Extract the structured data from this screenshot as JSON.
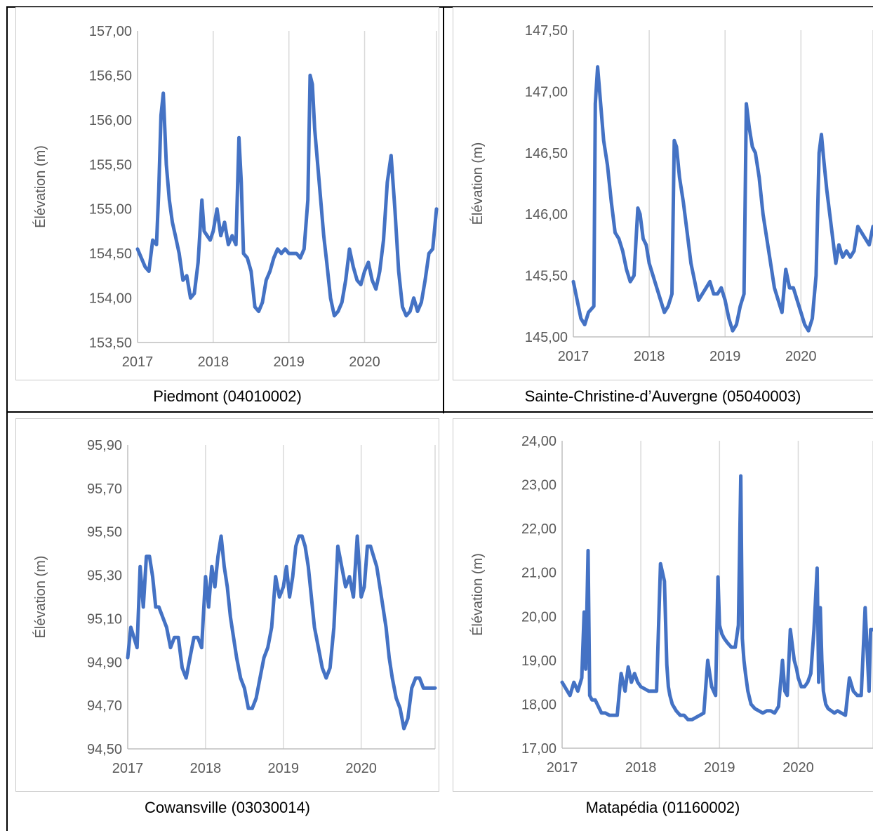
{
  "colors": {
    "line": "#4472C4",
    "grid": "#d9d9d9",
    "axis": "#bfbfbf",
    "text": "#595959"
  },
  "chart_data": [
    {
      "type": "line",
      "caption": "Piedmont (04010002)",
      "ylabel": "Élévation (m)",
      "ylim": [
        153.5,
        157.0
      ],
      "yticks": [
        "153,50",
        "154,00",
        "154,50",
        "155,00",
        "155,50",
        "156,00",
        "156,50",
        "157,00"
      ],
      "xlim": [
        2017,
        2020.95
      ],
      "xticks": [
        "2017",
        "2018",
        "2019",
        "2020"
      ],
      "grid": "vertical",
      "series": [
        {
          "x": [
            2017.0,
            2017.05,
            2017.1,
            2017.15,
            2017.2,
            2017.25,
            2017.28,
            2017.31,
            2017.34,
            2017.38,
            2017.42,
            2017.46,
            2017.5,
            2017.55,
            2017.6,
            2017.65,
            2017.7,
            2017.75,
            2017.8,
            2017.85,
            2017.88,
            2017.92,
            2017.96,
            2018.0,
            2018.05,
            2018.1,
            2018.15,
            2018.2,
            2018.25,
            2018.3,
            2018.34,
            2018.37,
            2018.4,
            2018.45,
            2018.5,
            2018.55,
            2018.6,
            2018.65,
            2018.7,
            2018.75,
            2018.8,
            2018.85,
            2018.9,
            2018.95,
            2019.0,
            2019.05,
            2019.1,
            2019.15,
            2019.2,
            2019.25,
            2019.28,
            2019.31,
            2019.34,
            2019.38,
            2019.42,
            2019.46,
            2019.5,
            2019.55,
            2019.6,
            2019.65,
            2019.7,
            2019.75,
            2019.8,
            2019.85,
            2019.9,
            2019.95,
            2020.0,
            2020.05,
            2020.1,
            2020.15,
            2020.2,
            2020.25,
            2020.3,
            2020.35,
            2020.4,
            2020.45,
            2020.5,
            2020.55,
            2020.6,
            2020.65,
            2020.7,
            2020.75,
            2020.8,
            2020.85,
            2020.9,
            2020.95
          ],
          "y": [
            154.55,
            154.45,
            154.35,
            154.3,
            154.65,
            154.6,
            155.2,
            156.05,
            156.3,
            155.5,
            155.1,
            154.85,
            154.7,
            154.5,
            154.2,
            154.25,
            154.0,
            154.05,
            154.4,
            155.1,
            154.75,
            154.7,
            154.65,
            154.75,
            155.0,
            154.7,
            154.85,
            154.6,
            154.7,
            154.6,
            155.8,
            155.3,
            154.5,
            154.45,
            154.3,
            153.9,
            153.85,
            153.95,
            154.2,
            154.3,
            154.45,
            154.55,
            154.5,
            154.55,
            154.5,
            154.5,
            154.5,
            154.45,
            154.55,
            155.1,
            156.5,
            156.4,
            155.9,
            155.5,
            155.1,
            154.7,
            154.4,
            154.0,
            153.8,
            153.85,
            153.95,
            154.2,
            154.55,
            154.35,
            154.2,
            154.15,
            154.3,
            154.4,
            154.2,
            154.1,
            154.3,
            154.65,
            155.3,
            155.6,
            155.0,
            154.3,
            153.9,
            153.8,
            153.85,
            154.0,
            153.85,
            153.95,
            154.2,
            154.5,
            154.55,
            155.0
          ]
        }
      ]
    },
    {
      "type": "line",
      "caption": "Sainte-Christine-d’Auvergne (05040003)",
      "ylabel": "Élévation (m)",
      "ylim": [
        145.0,
        147.5
      ],
      "yticks": [
        "145,00",
        "145,50",
        "146,00",
        "146,50",
        "147,00",
        "147,50"
      ],
      "xlim": [
        2017,
        2020.95
      ],
      "xticks": [
        "2017",
        "2018",
        "2019",
        "2020"
      ],
      "grid": "vertical",
      "series": [
        {
          "x": [
            2017.0,
            2017.05,
            2017.1,
            2017.15,
            2017.2,
            2017.27,
            2017.29,
            2017.32,
            2017.36,
            2017.4,
            2017.45,
            2017.5,
            2017.55,
            2017.6,
            2017.65,
            2017.7,
            2017.75,
            2017.8,
            2017.85,
            2017.88,
            2017.92,
            2017.96,
            2018.0,
            2018.05,
            2018.1,
            2018.15,
            2018.2,
            2018.25,
            2018.3,
            2018.33,
            2018.36,
            2018.4,
            2018.45,
            2018.5,
            2018.55,
            2018.6,
            2018.65,
            2018.7,
            2018.75,
            2018.8,
            2018.85,
            2018.9,
            2018.95,
            2019.0,
            2019.05,
            2019.1,
            2019.15,
            2019.2,
            2019.25,
            2019.28,
            2019.32,
            2019.36,
            2019.4,
            2019.45,
            2019.5,
            2019.55,
            2019.6,
            2019.65,
            2019.7,
            2019.75,
            2019.8,
            2019.85,
            2019.9,
            2019.95,
            2020.0,
            2020.05,
            2020.1,
            2020.15,
            2020.2,
            2020.24,
            2020.27,
            2020.3,
            2020.34,
            2020.38,
            2020.42,
            2020.46,
            2020.5,
            2020.55,
            2020.6,
            2020.65,
            2020.7,
            2020.75,
            2020.8,
            2020.85,
            2020.9,
            2020.95
          ],
          "y": [
            145.45,
            145.3,
            145.15,
            145.1,
            145.2,
            145.25,
            146.9,
            147.2,
            146.9,
            146.6,
            146.4,
            146.1,
            145.85,
            145.8,
            145.7,
            145.55,
            145.45,
            145.5,
            146.05,
            146.0,
            145.8,
            145.75,
            145.6,
            145.5,
            145.4,
            145.3,
            145.2,
            145.25,
            145.35,
            146.6,
            146.55,
            146.3,
            146.1,
            145.85,
            145.6,
            145.45,
            145.3,
            145.35,
            145.4,
            145.45,
            145.35,
            145.35,
            145.4,
            145.3,
            145.15,
            145.05,
            145.1,
            145.25,
            145.35,
            146.9,
            146.7,
            146.55,
            146.5,
            146.3,
            146.0,
            145.8,
            145.6,
            145.4,
            145.3,
            145.2,
            145.55,
            145.4,
            145.4,
            145.3,
            145.2,
            145.1,
            145.05,
            145.15,
            145.5,
            146.5,
            146.65,
            146.45,
            146.2,
            146.0,
            145.8,
            145.6,
            145.75,
            145.65,
            145.7,
            145.65,
            145.7,
            145.9,
            145.85,
            145.8,
            145.75,
            145.9
          ]
        }
      ]
    },
    {
      "type": "line",
      "caption": "Cowansville (03030014)",
      "ylabel": "Élévation (m)",
      "ylim": [
        94.5,
        96.0
      ],
      "yticks": [
        "94,50",
        "94,70",
        "94,90",
        "95,10",
        "95,30",
        "95,50",
        "95,70",
        "95,90"
      ],
      "xlim": [
        2017,
        2020.95
      ],
      "xticks": [
        "2017",
        "2018",
        "2019",
        "2020"
      ],
      "grid": "vertical",
      "series": [
        {
          "x": [
            2017.0,
            2017.04,
            2017.08,
            2017.12,
            2017.16,
            2017.2,
            2017.24,
            2017.28,
            2017.32,
            2017.36,
            2017.4,
            2017.45,
            2017.5,
            2017.55,
            2017.6,
            2017.65,
            2017.7,
            2017.75,
            2017.8,
            2017.85,
            2017.9,
            2017.95,
            2018.0,
            2018.04,
            2018.08,
            2018.12,
            2018.16,
            2018.2,
            2018.24,
            2018.28,
            2018.32,
            2018.36,
            2018.4,
            2018.45,
            2018.5,
            2018.55,
            2018.6,
            2018.65,
            2018.7,
            2018.75,
            2018.8,
            2018.85,
            2018.9,
            2018.95,
            2019.0,
            2019.04,
            2019.08,
            2019.12,
            2019.16,
            2019.2,
            2019.24,
            2019.28,
            2019.32,
            2019.36,
            2019.4,
            2019.45,
            2019.5,
            2019.55,
            2019.6,
            2019.65,
            2019.7,
            2019.75,
            2019.8,
            2019.85,
            2019.9,
            2019.95,
            2020.0,
            2020.04,
            2020.08,
            2020.12,
            2020.16,
            2020.2,
            2020.24,
            2020.28,
            2020.32,
            2020.36,
            2020.4,
            2020.45,
            2020.5,
            2020.55,
            2020.6,
            2020.65,
            2020.7,
            2020.75,
            2020.8,
            2020.85,
            2020.9,
            2020.95
          ],
          "y": [
            94.95,
            95.1,
            95.05,
            95.0,
            95.4,
            95.2,
            95.45,
            95.45,
            95.35,
            95.2,
            95.2,
            95.15,
            95.1,
            95.0,
            95.05,
            95.05,
            94.9,
            94.85,
            94.95,
            95.05,
            95.05,
            95.0,
            95.35,
            95.2,
            95.4,
            95.3,
            95.45,
            95.55,
            95.4,
            95.3,
            95.15,
            95.05,
            94.95,
            94.85,
            94.8,
            94.7,
            94.7,
            94.75,
            94.85,
            94.95,
            95.0,
            95.1,
            95.35,
            95.25,
            95.3,
            95.4,
            95.25,
            95.35,
            95.5,
            95.55,
            95.55,
            95.5,
            95.4,
            95.25,
            95.1,
            95.0,
            94.9,
            94.85,
            94.9,
            95.1,
            95.5,
            95.4,
            95.3,
            95.35,
            95.25,
            95.55,
            95.25,
            95.3,
            95.5,
            95.5,
            95.45,
            95.4,
            95.3,
            95.2,
            95.1,
            94.95,
            94.85,
            94.75,
            94.7,
            94.6,
            94.65,
            94.8,
            94.85,
            94.85,
            94.8,
            94.8,
            94.8,
            94.8
          ]
        }
      ]
    },
    {
      "type": "line",
      "caption": "Matapédia (01160002)",
      "ylabel": "Élévation (m)",
      "ylim": [
        17.0,
        24.0
      ],
      "yticks": [
        "17,00",
        "18,00",
        "19,00",
        "20,00",
        "21,00",
        "22,00",
        "23,00",
        "24,00"
      ],
      "xlim": [
        2017,
        2020.95
      ],
      "xticks": [
        "2017",
        "2018",
        "2019",
        "2020"
      ],
      "grid": "vertical",
      "series": [
        {
          "x": [
            2017.0,
            2017.05,
            2017.1,
            2017.15,
            2017.2,
            2017.25,
            2017.28,
            2017.3,
            2017.33,
            2017.35,
            2017.38,
            2017.42,
            2017.46,
            2017.5,
            2017.55,
            2017.6,
            2017.65,
            2017.7,
            2017.75,
            2017.8,
            2017.84,
            2017.88,
            2017.92,
            2017.96,
            2018.0,
            2018.05,
            2018.1,
            2018.15,
            2018.2,
            2018.25,
            2018.3,
            2018.33,
            2018.35,
            2018.37,
            2018.4,
            2018.45,
            2018.5,
            2018.55,
            2018.6,
            2018.65,
            2018.7,
            2018.75,
            2018.8,
            2018.85,
            2018.9,
            2018.95,
            2018.98,
            2019.0,
            2019.03,
            2019.06,
            2019.1,
            2019.15,
            2019.2,
            2019.24,
            2019.27,
            2019.29,
            2019.31,
            2019.33,
            2019.36,
            2019.4,
            2019.45,
            2019.5,
            2019.55,
            2019.6,
            2019.65,
            2019.7,
            2019.75,
            2019.8,
            2019.83,
            2019.86,
            2019.9,
            2019.95,
            2019.98,
            2020.0,
            2020.04,
            2020.08,
            2020.12,
            2020.16,
            2020.2,
            2020.24,
            2020.26,
            2020.28,
            2020.3,
            2020.32,
            2020.35,
            2020.38,
            2020.42,
            2020.46,
            2020.5,
            2020.55,
            2020.6,
            2020.65,
            2020.7,
            2020.75,
            2020.8,
            2020.85,
            2020.9,
            2020.92,
            2020.95
          ],
          "y": [
            18.5,
            18.35,
            18.2,
            18.5,
            18.3,
            18.6,
            20.1,
            18.8,
            21.5,
            18.2,
            18.1,
            18.1,
            17.95,
            17.8,
            17.8,
            17.75,
            17.75,
            17.75,
            18.7,
            18.3,
            18.85,
            18.5,
            18.7,
            18.5,
            18.4,
            18.35,
            18.3,
            18.3,
            18.3,
            21.2,
            20.8,
            18.9,
            18.4,
            18.2,
            18.0,
            17.85,
            17.75,
            17.75,
            17.65,
            17.65,
            17.7,
            17.75,
            17.8,
            19.0,
            18.4,
            18.2,
            20.9,
            19.8,
            19.6,
            19.5,
            19.4,
            19.3,
            19.3,
            19.8,
            23.2,
            19.5,
            19.0,
            18.7,
            18.3,
            18.0,
            17.9,
            17.85,
            17.8,
            17.85,
            17.85,
            17.8,
            17.95,
            19.0,
            18.3,
            18.2,
            19.7,
            19.0,
            18.8,
            18.6,
            18.4,
            18.4,
            18.5,
            18.7,
            19.7,
            21.1,
            18.5,
            20.2,
            19.0,
            18.3,
            18.0,
            17.9,
            17.85,
            17.8,
            17.85,
            17.8,
            17.75,
            18.6,
            18.3,
            18.2,
            18.2,
            20.2,
            18.3,
            19.7,
            19.7
          ]
        }
      ]
    }
  ]
}
